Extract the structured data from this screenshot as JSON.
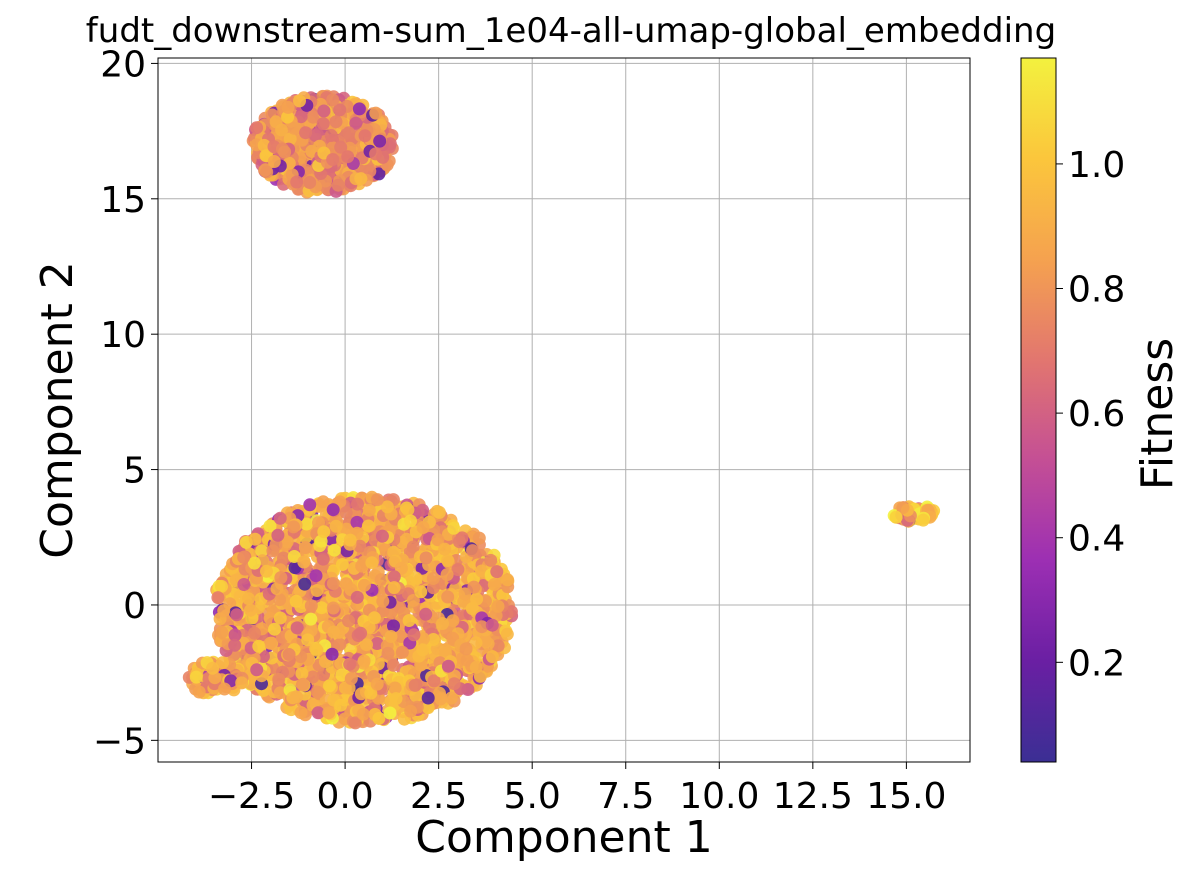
{
  "chart_data": {
    "type": "scatter",
    "title": "fudt_downstream-sum_1e04-all-umap-global_embedding",
    "xlabel": "Component 1",
    "ylabel": "Component 2",
    "colorbar_label": "Fitness",
    "xlim": [
      -5.0,
      16.7
    ],
    "ylim": [
      -5.8,
      20.2
    ],
    "xticks": [
      -2.5,
      0.0,
      2.5,
      5.0,
      7.5,
      10.0,
      12.5,
      15.0
    ],
    "xtick_labels": [
      "−2.5",
      "0.0",
      "2.5",
      "5.0",
      "7.5",
      "10.0",
      "12.5",
      "15.0"
    ],
    "yticks": [
      -5,
      0,
      5,
      10,
      15,
      20
    ],
    "ytick_labels": [
      "−5",
      "0",
      "5",
      "10",
      "15",
      "20"
    ],
    "colorbar_range": [
      0.04,
      1.17
    ],
    "colorbar_ticks": [
      0.2,
      0.4,
      0.6,
      0.8,
      1.0
    ],
    "colorbar_tick_labels": [
      "0.2",
      "0.4",
      "0.6",
      "0.8",
      "1.0"
    ],
    "colormap": "plasma",
    "colormap_stops": [
      "#3b2f94",
      "#6a1fa3",
      "#9c2fb3",
      "#c44f95",
      "#e2766f",
      "#f5a24f",
      "#fbc63c",
      "#f3f13e"
    ],
    "grid": true,
    "legend": "none",
    "clusters": [
      {
        "center": [
          0.5,
          -0.2
        ],
        "radius_x": 4.0,
        "radius_y": 4.2,
        "count": 2300,
        "fitness_mean": 0.9
      },
      {
        "center": [
          -3.5,
          -2.7
        ],
        "radius_x": 0.8,
        "radius_y": 0.6,
        "count": 80,
        "fitness_mean": 0.88
      },
      {
        "center": [
          -0.6,
          17.0
        ],
        "radius_x": 1.9,
        "radius_y": 1.8,
        "count": 700,
        "fitness_mean": 0.8
      },
      {
        "center": [
          15.2,
          3.4
        ],
        "radius_x": 0.55,
        "radius_y": 0.35,
        "count": 60,
        "fitness_mean": 1.0
      }
    ]
  }
}
